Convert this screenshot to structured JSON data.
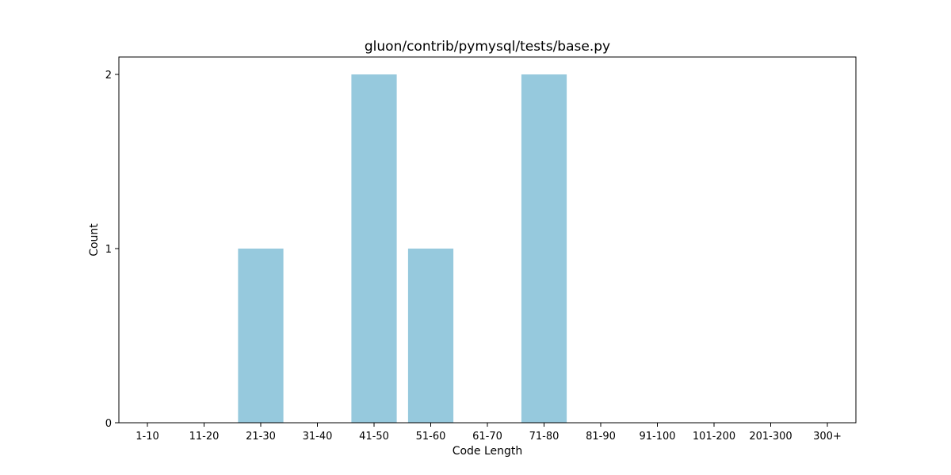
{
  "chart_data": {
    "type": "bar",
    "title": "gluon/contrib/pymysql/tests/base.py",
    "xlabel": "Code Length",
    "ylabel": "Count",
    "categories": [
      "1-10",
      "11-20",
      "21-30",
      "31-40",
      "41-50",
      "51-60",
      "61-70",
      "71-80",
      "81-90",
      "91-100",
      "101-200",
      "201-300",
      "300+"
    ],
    "values": [
      0,
      0,
      1,
      0,
      2,
      1,
      0,
      2,
      0,
      0,
      0,
      0,
      0
    ],
    "ylim": [
      0,
      2.1
    ],
    "yticks": [
      0,
      1,
      2
    ],
    "bar_color": "#96c9dd",
    "grid": false,
    "legend": "none"
  }
}
